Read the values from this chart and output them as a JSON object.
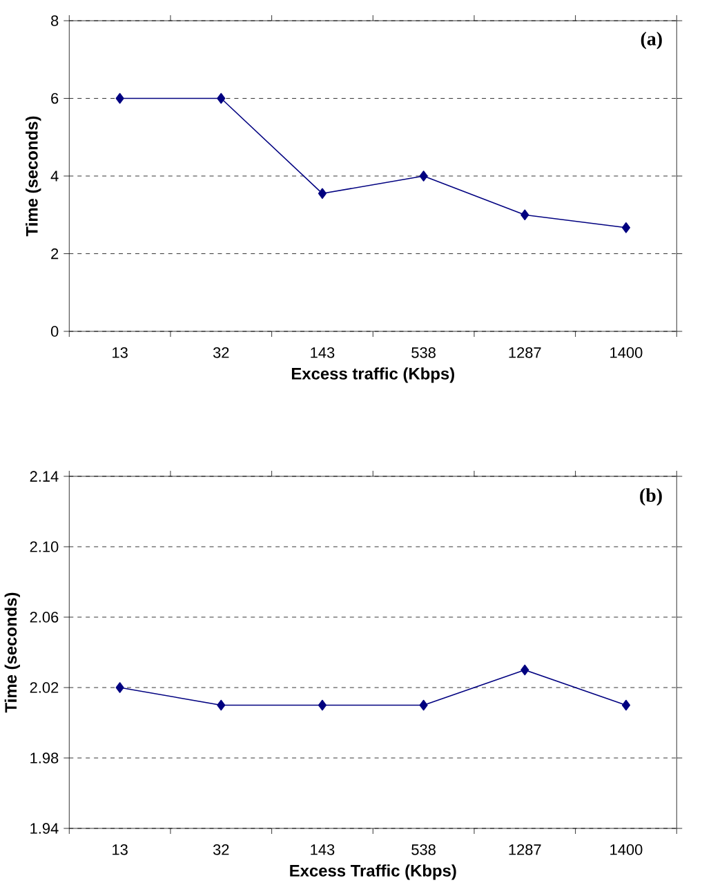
{
  "chart_data": [
    {
      "type": "line",
      "annotations": [
        "(a)"
      ],
      "xlabel": "Excess traffic (Kbps)",
      "ylabel": "Time (seconds)",
      "categories": [
        "13",
        "32",
        "143",
        "538",
        "1287",
        "1400"
      ],
      "series": [
        {
          "color": "#000080",
          "values": [
            6,
            6,
            3.55,
            4,
            3,
            2.67
          ]
        }
      ],
      "ylim": [
        0,
        8
      ],
      "yticks": [
        0,
        2,
        4,
        6,
        8
      ],
      "grid": "y",
      "marker": "diamond",
      "line_style": "solid"
    },
    {
      "type": "line",
      "annotations": [
        "(b)"
      ],
      "xlabel": "Excess Traffic (Kbps)",
      "ylabel": "Time (seconds)",
      "categories": [
        "13",
        "32",
        "143",
        "538",
        "1287",
        "1400"
      ],
      "series": [
        {
          "color": "#000080",
          "values": [
            2.02,
            2.01,
            2.01,
            2.01,
            2.03,
            2.01
          ]
        }
      ],
      "ylim": [
        1.94,
        2.14
      ],
      "yticks": [
        {
          "value": 1.94,
          "label": "1.94"
        },
        {
          "value": 1.98,
          "label": "1.98"
        },
        {
          "value": 2.02,
          "label": "2.02"
        },
        {
          "value": 2.06,
          "label": "2.06"
        },
        {
          "value": 2.1,
          "label": "2.10"
        },
        {
          "value": 2.14,
          "label": "2.14"
        }
      ],
      "grid": "y",
      "marker": "diamond",
      "line_style": "solid"
    }
  ]
}
